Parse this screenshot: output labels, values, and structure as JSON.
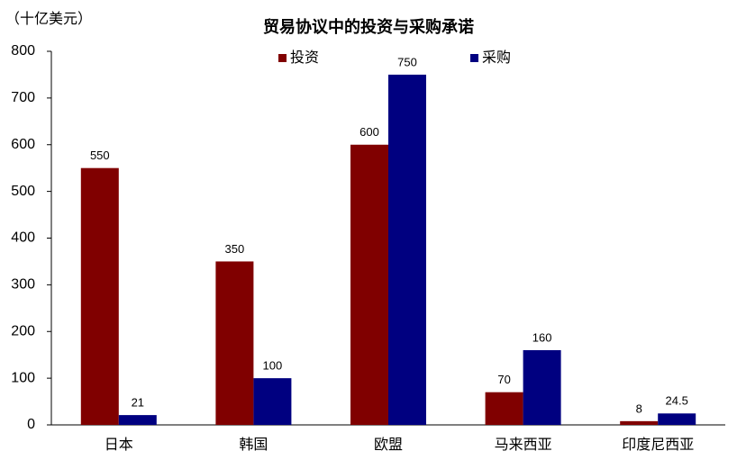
{
  "chart_data": {
    "type": "bar",
    "title": "贸易协议中的投资与采购承诺",
    "y_label": "（十亿美元）",
    "categories": [
      "日本",
      "韩国",
      "欧盟",
      "马来西亚",
      "印度尼西亚"
    ],
    "series": [
      {
        "name": "投资",
        "color": "#800000",
        "values": [
          550,
          350,
          600,
          70,
          8
        ]
      },
      {
        "name": "采购",
        "color": "#000080",
        "values": [
          21,
          100,
          750,
          160,
          24.5
        ]
      }
    ],
    "ylim": [
      0,
      800
    ],
    "yticks": [
      0,
      100,
      200,
      300,
      400,
      500,
      600,
      700,
      800
    ],
    "grid": false,
    "legend": "top"
  }
}
